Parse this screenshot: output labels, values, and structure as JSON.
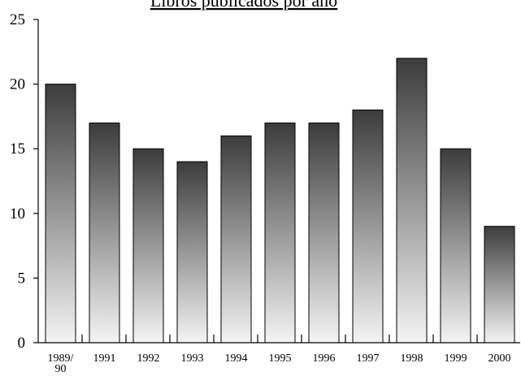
{
  "chart_data": {
    "type": "bar",
    "title": "Libros publicados por año",
    "xlabel": "",
    "ylabel": "",
    "categories": [
      "1989/90",
      "1991",
      "1992",
      "1993",
      "1994",
      "1995",
      "1996",
      "1997",
      "1998",
      "1999",
      "2000"
    ],
    "values": [
      20,
      17,
      15,
      14,
      16,
      17,
      17,
      18,
      22,
      15,
      9
    ],
    "ylim": [
      0,
      25
    ],
    "yticks": [
      0,
      5,
      10,
      15,
      20,
      25
    ],
    "grid": false,
    "legend": "none",
    "bar_fill": "vertical gradient dark gray top to light gray bottom",
    "colors": {
      "bar_top": "#3c3c3c",
      "bar_bottom": "#f4f4f4",
      "axis": "#000000"
    }
  }
}
